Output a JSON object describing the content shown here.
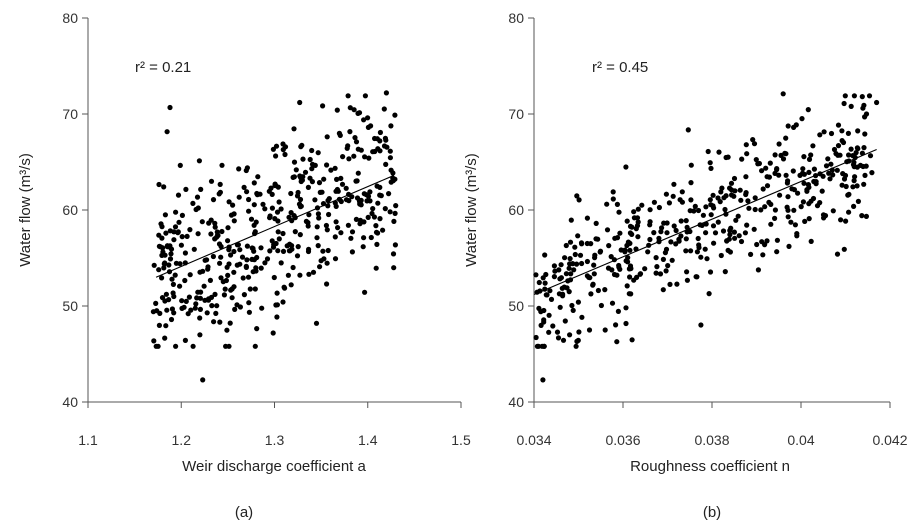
{
  "chart_data": [
    {
      "type": "scatter",
      "panel_label": "(a)",
      "xlabel": "Weir discharge coefficient a",
      "ylabel": "Water flow (m³/s)",
      "annotation": "r² = 0.21",
      "xlim": [
        1.1,
        1.5
      ],
      "ylim": [
        40,
        80
      ],
      "xticks": [
        1.1,
        1.2,
        1.3,
        1.4,
        1.5
      ],
      "xtick_labels": [
        "1.1",
        "1.2",
        "1.3",
        "1.4",
        "1.5"
      ],
      "yticks": [
        40,
        50,
        60,
        70,
        80
      ],
      "ytick_labels": [
        "40",
        "50",
        "60",
        "70",
        "80"
      ],
      "fit_line": {
        "x": [
          1.173,
          1.428
        ],
        "y": [
          53.0,
          63.6
        ]
      },
      "points": {
        "seed": 11,
        "count": 480,
        "x_range": [
          1.17,
          1.43
        ],
        "slope": 41.6,
        "intercept": 4.2,
        "noise_sd": 4.8,
        "y_clip": [
          42.3,
          72.2
        ],
        "extremes": [
          [
            1.223,
            42.3
          ],
          [
            1.42,
            72.2
          ],
          [
            1.327,
            71.2
          ],
          [
            1.22,
            47.0
          ],
          [
            1.345,
            48.2
          ]
        ]
      },
      "grid": false
    },
    {
      "type": "scatter",
      "panel_label": "(b)",
      "xlabel": "Roughness coefficient n",
      "ylabel": "Water flow (m³/s)",
      "annotation": "r² = 0.45",
      "xlim": [
        0.034,
        0.042
      ],
      "ylim": [
        40,
        80
      ],
      "xticks": [
        0.034,
        0.036,
        0.038,
        0.04,
        0.042
      ],
      "xtick_labels": [
        "0.034",
        "0.036",
        "0.038",
        "0.04",
        "0.042"
      ],
      "yticks": [
        40,
        50,
        60,
        70,
        80
      ],
      "ytick_labels": [
        "40",
        "50",
        "60",
        "70",
        "80"
      ],
      "fit_line": {
        "x": [
          0.034,
          0.0417
        ],
        "y": [
          51.2,
          66.3
        ]
      },
      "points": {
        "seed": 29,
        "count": 480,
        "x_range": [
          0.034,
          0.0417
        ],
        "slope": 1961,
        "intercept": -15.5,
        "noise_sd": 3.5,
        "y_clip": [
          42.3,
          72.2
        ],
        "extremes": [
          [
            0.0342,
            42.3
          ],
          [
            0.0396,
            72.1
          ],
          [
            0.0417,
            71.2
          ],
          [
            0.0348,
            47.0
          ],
          [
            0.0356,
            47.5
          ]
        ]
      },
      "grid": false
    }
  ]
}
